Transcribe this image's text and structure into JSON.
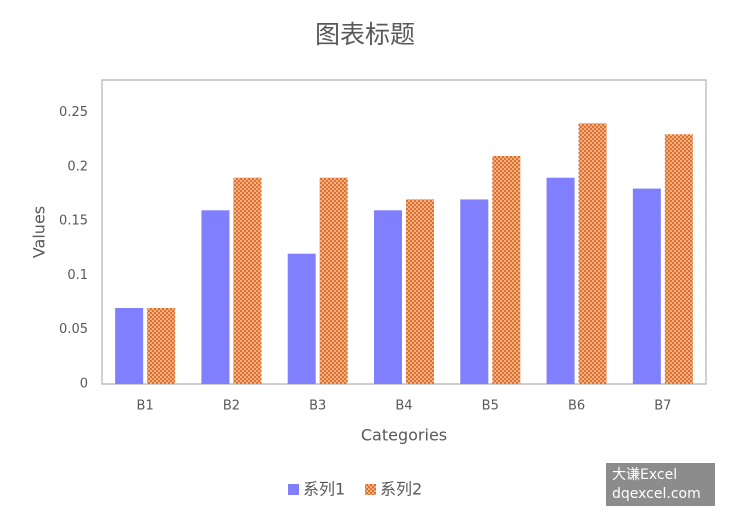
{
  "chart_data": {
    "type": "bar",
    "title": "图表标题",
    "x_label": "Categories",
    "y_label": "Values",
    "categories": [
      "B1",
      "B2",
      "B3",
      "B4",
      "B5",
      "B6",
      "B7"
    ],
    "series": [
      {
        "name": "系列1",
        "color": "#8080ff",
        "values": [
          0.07,
          0.16,
          0.12,
          0.16,
          0.17,
          0.19,
          0.18
        ]
      },
      {
        "name": "系列2",
        "color": "#e0702a",
        "pattern": "dots",
        "values": [
          0.07,
          0.19,
          0.19,
          0.17,
          0.21,
          0.24,
          0.23
        ]
      }
    ],
    "ylim": [
      0,
      0.28
    ],
    "yticks": [
      0,
      0.05,
      0.1,
      0.15,
      0.2,
      0.25
    ],
    "grid": false,
    "legend": "bottom"
  },
  "watermark": {
    "lines": [
      "大谦Excel",
      "dqexcel.com"
    ]
  }
}
